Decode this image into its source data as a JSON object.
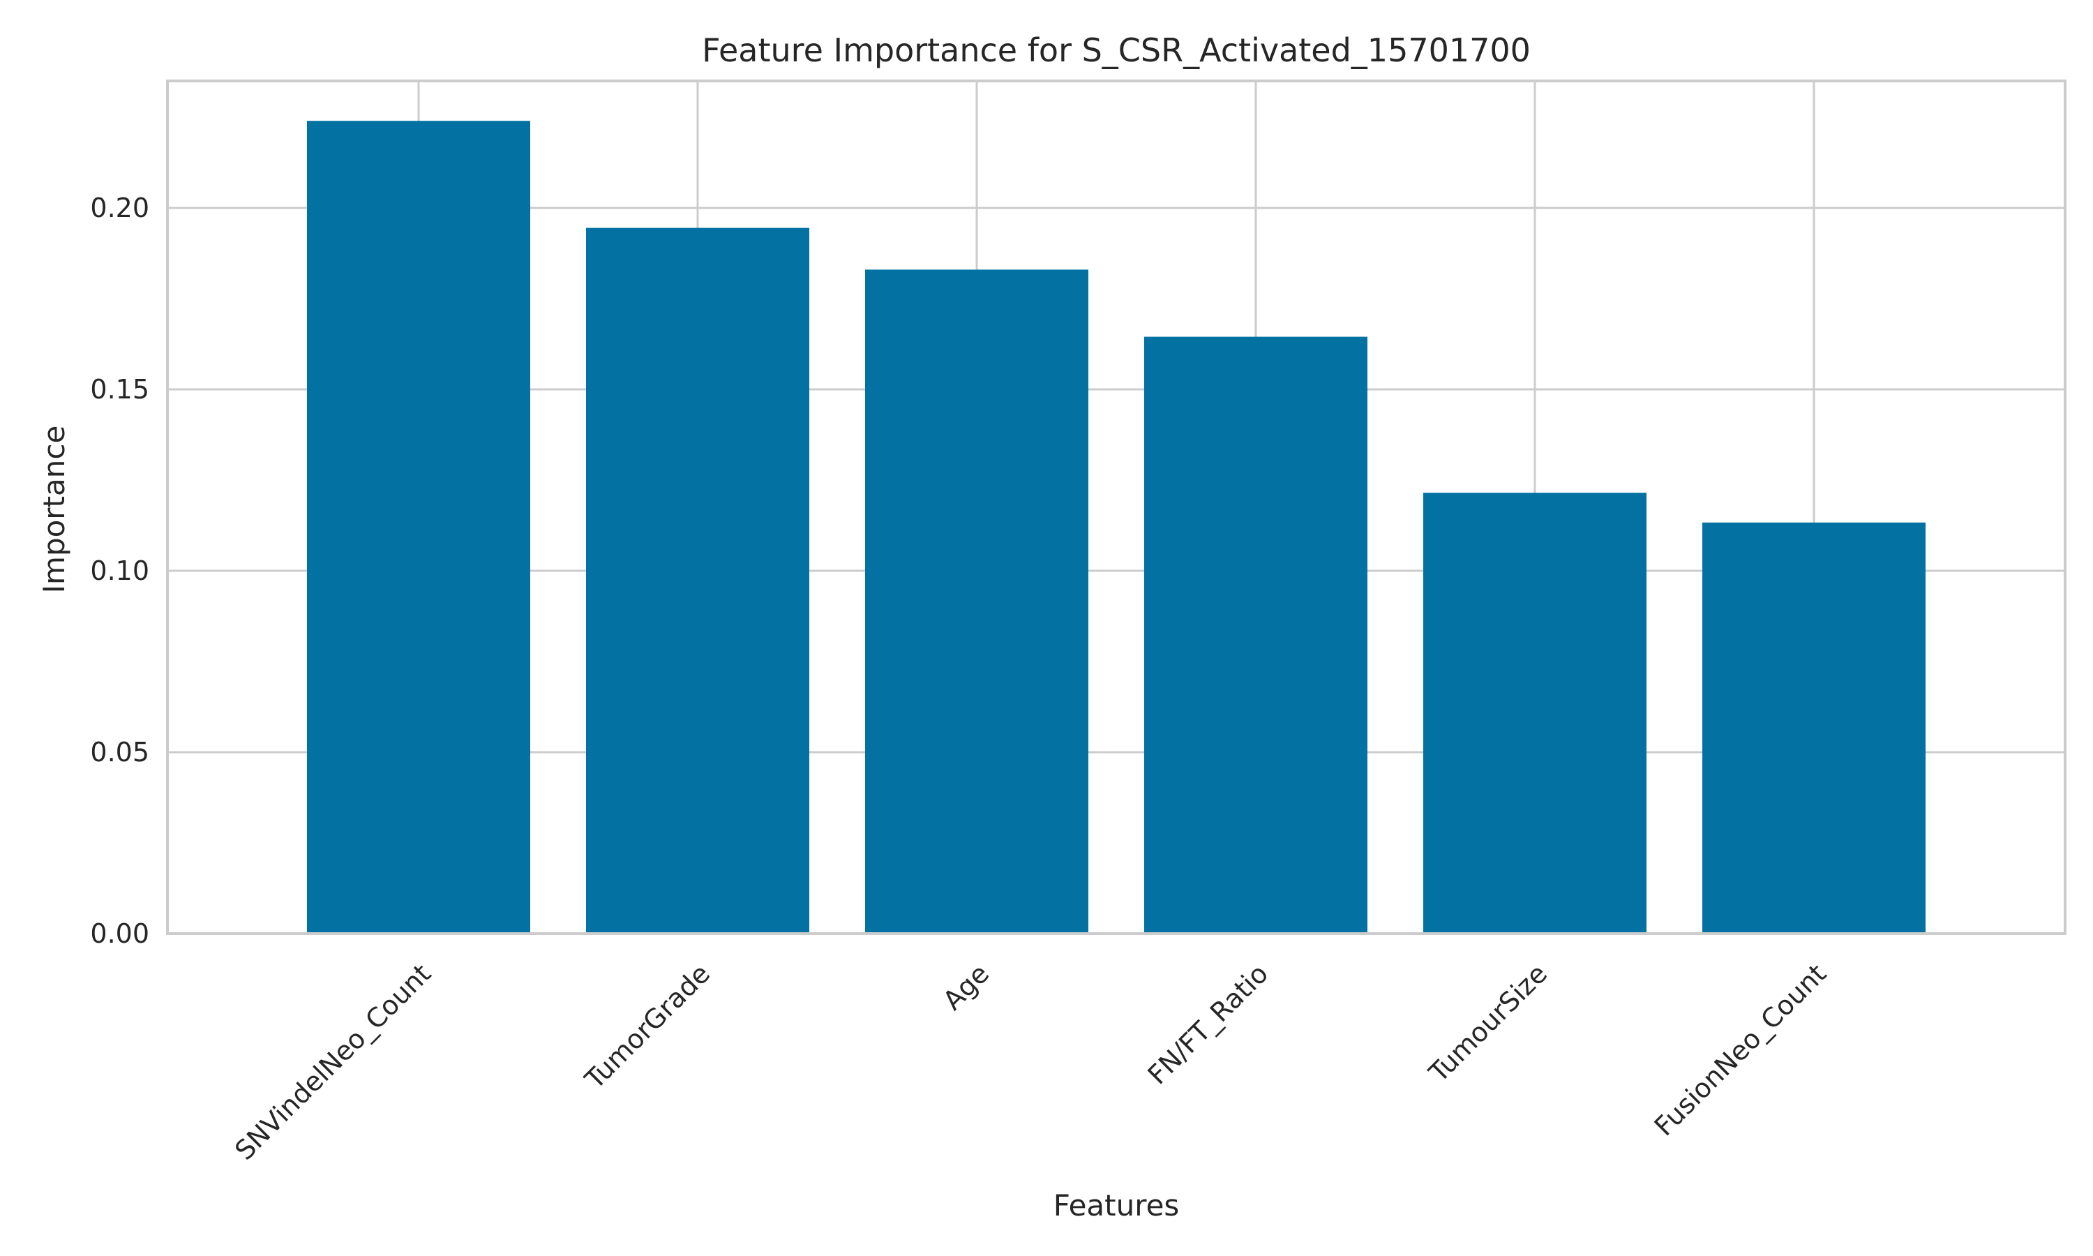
{
  "chart_data": {
    "type": "bar",
    "title": "Feature Importance for S_CSR_Activated_15701700",
    "xlabel": "Features",
    "ylabel": "Importance",
    "categories": [
      "SNVindelNeo_Count",
      "TumorGrade",
      "Age",
      "FN/FT_Ratio",
      "TumourSize",
      "FusionNeo_Count"
    ],
    "values": [
      0.224,
      0.1945,
      0.183,
      0.1645,
      0.1215,
      0.1133
    ],
    "ylim": [
      0,
      0.235
    ],
    "yticks": [
      0.0,
      0.05,
      0.1,
      0.15,
      0.2
    ],
    "ytick_labels": [
      "0.00",
      "0.05",
      "0.10",
      "0.15",
      "0.20"
    ],
    "grid": true,
    "bar_color": "#0372a3"
  }
}
